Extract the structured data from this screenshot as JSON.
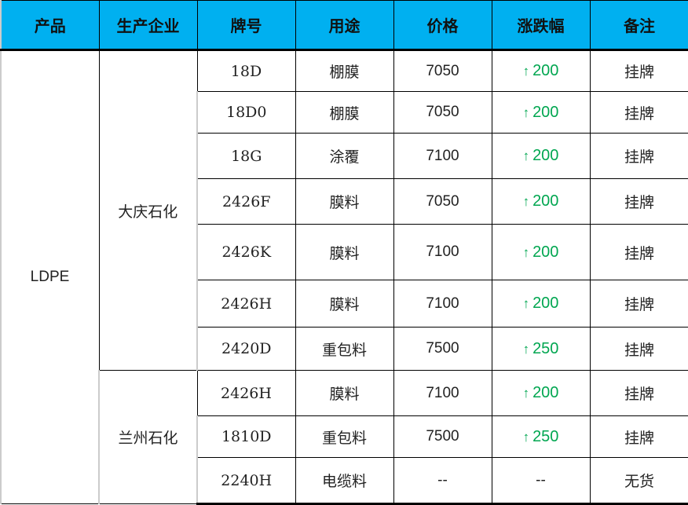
{
  "headers": [
    "产品",
    "生产企业",
    "牌号",
    "用途",
    "价格",
    "涨跌幅",
    "备注"
  ],
  "product": "LDPE",
  "colors": {
    "header_bg": "#00b0f0",
    "change_up": "#00a650"
  },
  "up_icon": "arrow-up-icon",
  "companies": [
    "大庆石化",
    "兰州石化"
  ],
  "rows": [
    {
      "grade": "18D",
      "use": "棚膜",
      "price": "7050",
      "change": "200",
      "note": "挂牌"
    },
    {
      "grade": "18D0",
      "use": "棚膜",
      "price": "7050",
      "change": "200",
      "note": "挂牌"
    },
    {
      "grade": "18G",
      "use": "涂覆",
      "price": "7100",
      "change": "200",
      "note": "挂牌"
    },
    {
      "grade": "2426F",
      "use": "膜料",
      "price": "7050",
      "change": "200",
      "note": "挂牌"
    },
    {
      "grade": "2426K",
      "use": "膜料",
      "price": "7100",
      "change": "200",
      "note": "挂牌"
    },
    {
      "grade": "2426H",
      "use": "膜料",
      "price": "7100",
      "change": "200",
      "note": "挂牌"
    },
    {
      "grade": "2420D",
      "use": "重包料",
      "price": "7500",
      "change": "250",
      "note": "挂牌"
    },
    {
      "grade": "2426H",
      "use": "膜料",
      "price": "7100",
      "change": "200",
      "note": "挂牌"
    },
    {
      "grade": "1810D",
      "use": "重包料",
      "price": "7500",
      "change": "250",
      "note": "挂牌"
    },
    {
      "grade": "2240H",
      "use": "电缆料",
      "price": "--",
      "change": "--",
      "note": "无货"
    }
  ]
}
